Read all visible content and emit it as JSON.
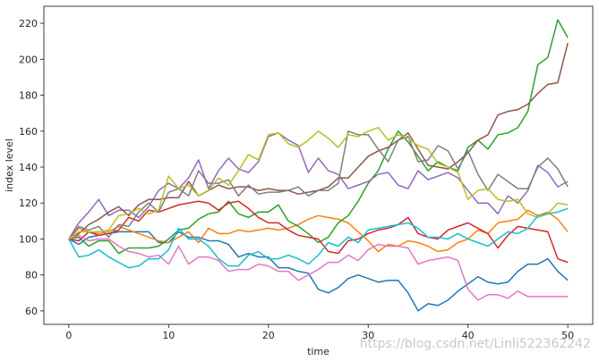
{
  "chart_data": {
    "type": "line",
    "xlabel": "time",
    "ylabel": "index level",
    "xlim": [
      -2.5,
      52.5
    ],
    "ylim": [
      52.5,
      229.5
    ],
    "xticks": [
      0,
      10,
      20,
      30,
      40,
      50
    ],
    "yticks": [
      60,
      80,
      100,
      120,
      140,
      160,
      180,
      200,
      220
    ],
    "grid": false,
    "legend": "none",
    "colors": [
      "#1f77b4",
      "#ff7f0e",
      "#2ca02c",
      "#d62728",
      "#9467bd",
      "#8c564b",
      "#e377c2",
      "#7f7f7f",
      "#bcbd22",
      "#17becf"
    ],
    "series": [
      {
        "values": [
          100,
          97,
          101,
          102,
          103,
          104,
          104,
          104,
          104,
          98,
          98,
          104,
          101,
          101,
          99,
          99,
          97,
          90,
          92,
          90,
          90,
          84,
          84,
          82,
          81,
          72,
          70,
          73,
          78,
          80,
          78,
          76,
          77,
          77,
          70,
          60,
          64,
          63,
          66,
          71,
          75,
          79,
          76,
          75,
          76,
          82,
          86,
          86,
          89,
          82,
          77
        ]
      },
      {
        "values": [
          100,
          106,
          104,
          103,
          104,
          107,
          105,
          103,
          101,
          99,
          98,
          101,
          104,
          98,
          106,
          103,
          103,
          105,
          104,
          105,
          106,
          105,
          106,
          108,
          111,
          113,
          112,
          111,
          109,
          104,
          99,
          93,
          97,
          96,
          99,
          98,
          96,
          93,
          94,
          98,
          100,
          105,
          103,
          109,
          110,
          111,
          116,
          113,
          115,
          111,
          104
        ]
      },
      {
        "values": [
          100,
          101,
          96,
          99,
          99,
          92,
          95,
          95,
          95,
          96,
          100,
          105,
          106,
          111,
          114,
          115,
          121,
          114,
          112,
          115,
          115,
          119,
          110,
          107,
          103,
          98,
          101,
          109,
          113,
          121,
          131,
          138,
          150,
          160,
          154,
          146,
          138,
          143,
          140,
          138,
          151,
          155,
          150,
          158,
          159,
          162,
          171,
          197,
          201,
          222,
          212
        ]
      },
      {
        "values": [
          100,
          99,
          104,
          102,
          103,
          105,
          112,
          110,
          116,
          115,
          117,
          119,
          120,
          121,
          120,
          116,
          120,
          121,
          117,
          112,
          109,
          109,
          105,
          102,
          101,
          100,
          93,
          92,
          99,
          100,
          103,
          105,
          106,
          108,
          112,
          103,
          101,
          100,
          105,
          107,
          109,
          106,
          103,
          95,
          102,
          107,
          106,
          105,
          104,
          89,
          87
        ]
      },
      {
        "values": [
          100,
          109,
          115,
          122,
          113,
          116,
          116,
          112,
          118,
          127,
          131,
          128,
          134,
          144,
          128,
          138,
          145,
          139,
          137,
          143,
          157,
          159,
          155,
          152,
          137,
          145,
          138,
          136,
          128,
          130,
          132,
          136,
          137,
          130,
          128,
          138,
          133,
          135,
          137,
          134,
          127,
          120,
          120,
          114,
          124,
          120,
          127,
          141,
          137,
          129,
          132
        ]
      },
      {
        "values": [
          100,
          103,
          108,
          111,
          115,
          118,
          113,
          119,
          122,
          122,
          123,
          123,
          132,
          124,
          127,
          130,
          128,
          129,
          129,
          127,
          128,
          127,
          127,
          125,
          126,
          127,
          129,
          134,
          134,
          140,
          146,
          149,
          151,
          155,
          159,
          150,
          141,
          140,
          139,
          143,
          148,
          155,
          158,
          169,
          171,
          172,
          175,
          181,
          186,
          187,
          209
        ]
      },
      {
        "values": [
          100,
          102,
          99,
          100,
          100,
          96,
          93,
          92,
          90,
          91,
          86,
          96,
          86,
          90,
          90,
          88,
          82,
          83,
          83,
          86,
          85,
          82,
          82,
          77,
          80,
          83,
          87,
          87,
          91,
          88,
          94,
          97,
          96,
          96,
          95,
          86,
          88,
          89,
          90,
          88,
          72,
          66,
          69,
          69,
          67,
          71,
          68,
          68,
          68,
          68,
          68
        ]
      },
      {
        "values": [
          100,
          107,
          105,
          107,
          101,
          108,
          107,
          115,
          120,
          115,
          126,
          128,
          124,
          138,
          131,
          131,
          133,
          124,
          130,
          125,
          126,
          126,
          127,
          129,
          124,
          127,
          127,
          131,
          160,
          158,
          158,
          150,
          143,
          155,
          157,
          143,
          144,
          152,
          149,
          139,
          149,
          136,
          127,
          136,
          132,
          128,
          128,
          140,
          145,
          139,
          129
        ]
      },
      {
        "values": [
          100,
          104,
          104,
          104,
          105,
          113,
          114,
          117,
          114,
          116,
          135,
          128,
          130,
          124,
          127,
          134,
          130,
          138,
          147,
          144,
          158,
          159,
          153,
          151,
          155,
          160,
          156,
          151,
          158,
          157,
          160,
          162,
          155,
          158,
          156,
          152,
          150,
          142,
          140,
          137,
          122,
          127,
          128,
          122,
          121,
          122,
          114,
          112,
          114,
          120,
          119
        ]
      },
      {
        "values": [
          100,
          90,
          91,
          94,
          90,
          87,
          84,
          85,
          89,
          89,
          94,
          106,
          100,
          100,
          96,
          89,
          85,
          85,
          91,
          93,
          89,
          89,
          91,
          89,
          86,
          91,
          98,
          96,
          101,
          98,
          105,
          106,
          107,
          108,
          109,
          106,
          101,
          101,
          100,
          103,
          100,
          98,
          96,
          100,
          104,
          103,
          106,
          113,
          114,
          115,
          117
        ]
      }
    ]
  },
  "watermark": "https://blog.csdn.net/Linli522362242"
}
